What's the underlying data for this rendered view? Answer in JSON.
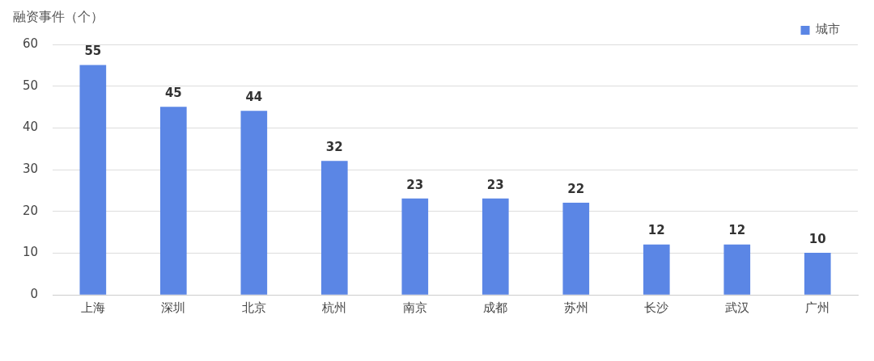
{
  "chart_data": {
    "type": "bar",
    "ylabel": "融资事件（个）",
    "categories": [
      "上海",
      "深圳",
      "北京",
      "杭州",
      "南京",
      "成都",
      "苏州",
      "长沙",
      "武汉",
      "广州"
    ],
    "series": [
      {
        "name": "城市",
        "color": "#5b86e5",
        "values": [
          55,
          45,
          44,
          32,
          23,
          23,
          22,
          12,
          12,
          10
        ]
      }
    ],
    "ylim": [
      0,
      60
    ],
    "yticks": [
      0,
      10,
      20,
      30,
      40,
      50,
      60
    ],
    "grid": "y",
    "legend": "top right",
    "data_labels": true
  }
}
